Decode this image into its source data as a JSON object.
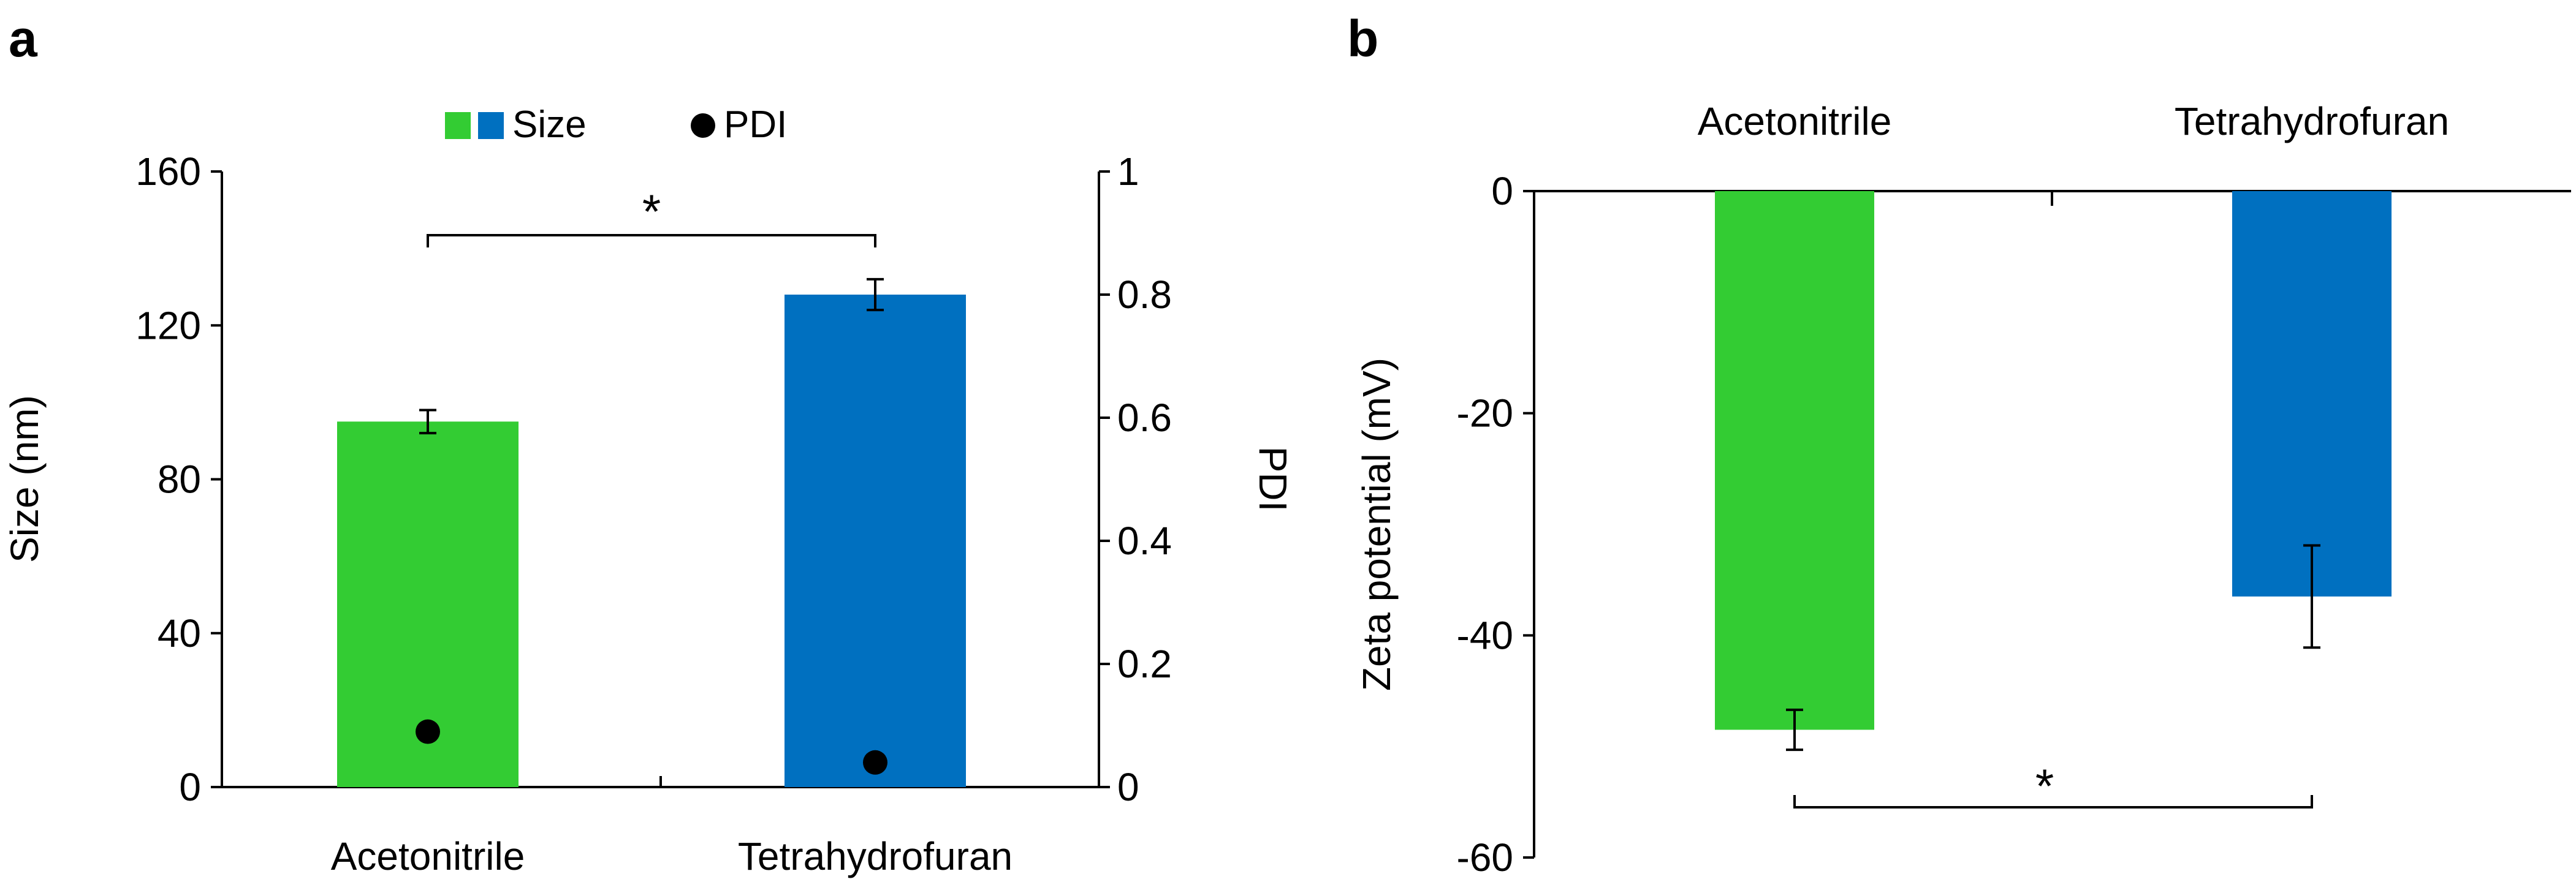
{
  "chart_data": [
    {
      "panel_label": "a",
      "type": "bar",
      "categories": [
        "Acetonitrile",
        "Tetrahydrofuran"
      ],
      "legend": {
        "placement": "top-center",
        "size_label": "Size",
        "pdi_label": "PDI"
      },
      "series": [
        {
          "name": "Size",
          "axis": "left",
          "values": [
            95,
            128
          ],
          "errors": [
            3,
            4
          ]
        },
        {
          "name": "PDI",
          "axis": "right",
          "marker": "circle",
          "values": [
            0.09,
            0.04
          ]
        }
      ],
      "ylabel": "Size (nm)",
      "ylim": [
        0,
        160
      ],
      "yticks": [
        "0",
        "40",
        "80",
        "120",
        "160"
      ],
      "y2label": "PDI",
      "y2lim": [
        0,
        1
      ],
      "y2ticks": [
        "0",
        "0.2",
        "0.4",
        "0.6",
        "0.8",
        "1"
      ],
      "significance": "*",
      "colors": [
        "#33cc33",
        "#0070c0"
      ]
    },
    {
      "panel_label": "b",
      "type": "bar",
      "categories": [
        "Acetonitrile",
        "Tetrahydrofuran"
      ],
      "series": [
        {
          "name": "Zeta potential",
          "values": [
            -48.5,
            -36.5
          ],
          "errors": [
            1.8,
            4.6
          ]
        }
      ],
      "ylabel": "Zeta potential (mV)",
      "ylim": [
        -60,
        0
      ],
      "yticks": [
        "0",
        "-20",
        "-40",
        "-60"
      ],
      "category_labels_position": "top",
      "significance": "*",
      "colors": [
        "#33cc33",
        "#0070c0"
      ]
    }
  ]
}
